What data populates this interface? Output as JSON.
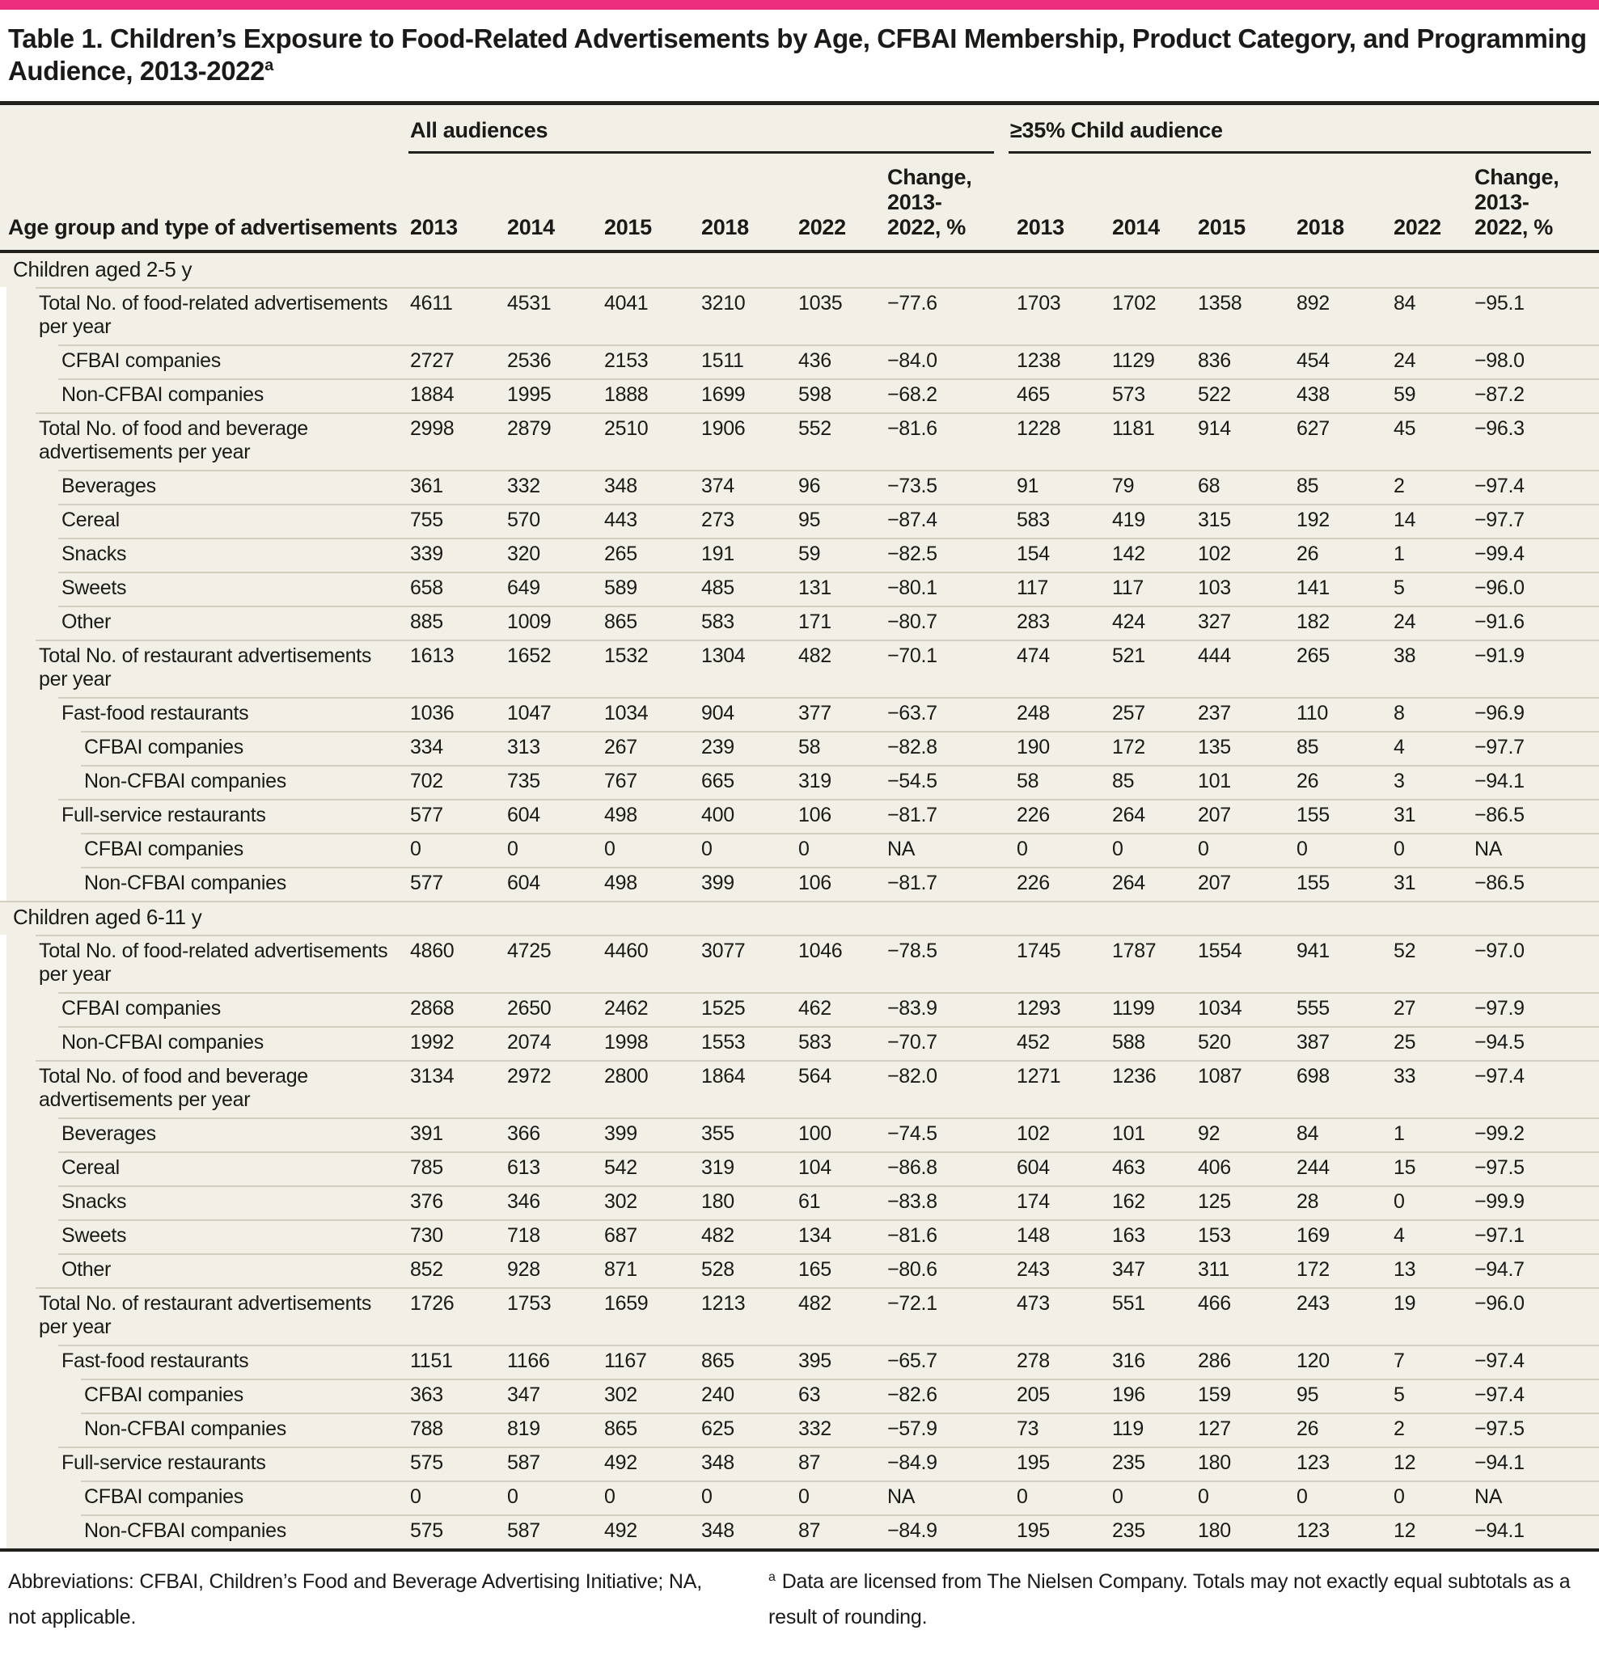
{
  "accent_color": "#ED2E7C",
  "title": "Table 1. Children’s Exposure to Food-Related Advertisements by Age, CFBAI Membership, Product Category, and Programming Audience, 2013-2022",
  "title_superscript": "a",
  "header": {
    "row_label": "Age group and type of advertisements",
    "groups": [
      {
        "label": "All audiences",
        "years": [
          "2013",
          "2014",
          "2015",
          "2018",
          "2022"
        ],
        "change_label": "Change,\n2013-\n2022, %"
      },
      {
        "label": "≥35% Child audience",
        "years": [
          "2013",
          "2014",
          "2015",
          "2018",
          "2022"
        ],
        "change_label": "Change,\n2013-\n2022, %"
      }
    ]
  },
  "sections": [
    {
      "label": "Children aged 2-5 y",
      "rows": [
        {
          "label": "Total No. of food-related advertisements per year",
          "level": 1,
          "all": [
            "4611",
            "4531",
            "4041",
            "3210",
            "1035",
            "−77.6"
          ],
          "child": [
            "1703",
            "1702",
            "1358",
            "892",
            "84",
            "−95.1"
          ]
        },
        {
          "label": "CFBAI companies",
          "level": 2,
          "all": [
            "2727",
            "2536",
            "2153",
            "1511",
            "436",
            "−84.0"
          ],
          "child": [
            "1238",
            "1129",
            "836",
            "454",
            "24",
            "−98.0"
          ]
        },
        {
          "label": "Non-CFBAI companies",
          "level": 2,
          "all": [
            "1884",
            "1995",
            "1888",
            "1699",
            "598",
            "−68.2"
          ],
          "child": [
            "465",
            "573",
            "522",
            "438",
            "59",
            "−87.2"
          ]
        },
        {
          "label": "Total No. of food and beverage advertisements per year",
          "level": 1,
          "all": [
            "2998",
            "2879",
            "2510",
            "1906",
            "552",
            "−81.6"
          ],
          "child": [
            "1228",
            "1181",
            "914",
            "627",
            "45",
            "−96.3"
          ]
        },
        {
          "label": "Beverages",
          "level": 2,
          "all": [
            "361",
            "332",
            "348",
            "374",
            "96",
            "−73.5"
          ],
          "child": [
            "91",
            "79",
            "68",
            "85",
            "2",
            "−97.4"
          ]
        },
        {
          "label": "Cereal",
          "level": 2,
          "all": [
            "755",
            "570",
            "443",
            "273",
            "95",
            "−87.4"
          ],
          "child": [
            "583",
            "419",
            "315",
            "192",
            "14",
            "−97.7"
          ]
        },
        {
          "label": "Snacks",
          "level": 2,
          "all": [
            "339",
            "320",
            "265",
            "191",
            "59",
            "−82.5"
          ],
          "child": [
            "154",
            "142",
            "102",
            "26",
            "1",
            "−99.4"
          ]
        },
        {
          "label": "Sweets",
          "level": 2,
          "all": [
            "658",
            "649",
            "589",
            "485",
            "131",
            "−80.1"
          ],
          "child": [
            "117",
            "117",
            "103",
            "141",
            "5",
            "−96.0"
          ]
        },
        {
          "label": "Other",
          "level": 2,
          "all": [
            "885",
            "1009",
            "865",
            "583",
            "171",
            "−80.7"
          ],
          "child": [
            "283",
            "424",
            "327",
            "182",
            "24",
            "−91.6"
          ]
        },
        {
          "label": "Total No. of restaurant advertisements per year",
          "level": 1,
          "all": [
            "1613",
            "1652",
            "1532",
            "1304",
            "482",
            "−70.1"
          ],
          "child": [
            "474",
            "521",
            "444",
            "265",
            "38",
            "−91.9"
          ]
        },
        {
          "label": "Fast-food restaurants",
          "level": 2,
          "all": [
            "1036",
            "1047",
            "1034",
            "904",
            "377",
            "−63.7"
          ],
          "child": [
            "248",
            "257",
            "237",
            "110",
            "8",
            "−96.9"
          ]
        },
        {
          "label": "CFBAI companies",
          "level": 3,
          "all": [
            "334",
            "313",
            "267",
            "239",
            "58",
            "−82.8"
          ],
          "child": [
            "190",
            "172",
            "135",
            "85",
            "4",
            "−97.7"
          ]
        },
        {
          "label": "Non-CFBAI companies",
          "level": 3,
          "all": [
            "702",
            "735",
            "767",
            "665",
            "319",
            "−54.5"
          ],
          "child": [
            "58",
            "85",
            "101",
            "26",
            "3",
            "−94.1"
          ]
        },
        {
          "label": "Full-service restaurants",
          "level": 2,
          "all": [
            "577",
            "604",
            "498",
            "400",
            "106",
            "−81.7"
          ],
          "child": [
            "226",
            "264",
            "207",
            "155",
            "31",
            "−86.5"
          ]
        },
        {
          "label": "CFBAI companies",
          "level": 3,
          "all": [
            "0",
            "0",
            "0",
            "0",
            "0",
            "NA"
          ],
          "child": [
            "0",
            "0",
            "0",
            "0",
            "0",
            "NA"
          ]
        },
        {
          "label": "Non-CFBAI companies",
          "level": 3,
          "all": [
            "577",
            "604",
            "498",
            "399",
            "106",
            "−81.7"
          ],
          "child": [
            "226",
            "264",
            "207",
            "155",
            "31",
            "−86.5"
          ]
        }
      ]
    },
    {
      "label": "Children aged 6-11 y",
      "rows": [
        {
          "label": "Total No. of food-related advertisements per year",
          "level": 1,
          "all": [
            "4860",
            "4725",
            "4460",
            "3077",
            "1046",
            "−78.5"
          ],
          "child": [
            "1745",
            "1787",
            "1554",
            "941",
            "52",
            "−97.0"
          ]
        },
        {
          "label": "CFBAI companies",
          "level": 2,
          "all": [
            "2868",
            "2650",
            "2462",
            "1525",
            "462",
            "−83.9"
          ],
          "child": [
            "1293",
            "1199",
            "1034",
            "555",
            "27",
            "−97.9"
          ]
        },
        {
          "label": "Non-CFBAI companies",
          "level": 2,
          "all": [
            "1992",
            "2074",
            "1998",
            "1553",
            "583",
            "−70.7"
          ],
          "child": [
            "452",
            "588",
            "520",
            "387",
            "25",
            "−94.5"
          ]
        },
        {
          "label": "Total No. of food and beverage advertisements per year",
          "level": 1,
          "all": [
            "3134",
            "2972",
            "2800",
            "1864",
            "564",
            "−82.0"
          ],
          "child": [
            "1271",
            "1236",
            "1087",
            "698",
            "33",
            "−97.4"
          ]
        },
        {
          "label": "Beverages",
          "level": 2,
          "all": [
            "391",
            "366",
            "399",
            "355",
            "100",
            "−74.5"
          ],
          "child": [
            "102",
            "101",
            "92",
            "84",
            "1",
            "−99.2"
          ]
        },
        {
          "label": "Cereal",
          "level": 2,
          "all": [
            "785",
            "613",
            "542",
            "319",
            "104",
            "−86.8"
          ],
          "child": [
            "604",
            "463",
            "406",
            "244",
            "15",
            "−97.5"
          ]
        },
        {
          "label": "Snacks",
          "level": 2,
          "all": [
            "376",
            "346",
            "302",
            "180",
            "61",
            "−83.8"
          ],
          "child": [
            "174",
            "162",
            "125",
            "28",
            "0",
            "−99.9"
          ]
        },
        {
          "label": "Sweets",
          "level": 2,
          "all": [
            "730",
            "718",
            "687",
            "482",
            "134",
            "−81.6"
          ],
          "child": [
            "148",
            "163",
            "153",
            "169",
            "4",
            "−97.1"
          ]
        },
        {
          "label": "Other",
          "level": 2,
          "all": [
            "852",
            "928",
            "871",
            "528",
            "165",
            "−80.6"
          ],
          "child": [
            "243",
            "347",
            "311",
            "172",
            "13",
            "−94.7"
          ]
        },
        {
          "label": "Total No. of restaurant advertisements per year",
          "level": 1,
          "all": [
            "1726",
            "1753",
            "1659",
            "1213",
            "482",
            "−72.1"
          ],
          "child": [
            "473",
            "551",
            "466",
            "243",
            "19",
            "−96.0"
          ]
        },
        {
          "label": "Fast-food restaurants",
          "level": 2,
          "all": [
            "1151",
            "1166",
            "1167",
            "865",
            "395",
            "−65.7"
          ],
          "child": [
            "278",
            "316",
            "286",
            "120",
            "7",
            "−97.4"
          ]
        },
        {
          "label": "CFBAI companies",
          "level": 3,
          "all": [
            "363",
            "347",
            "302",
            "240",
            "63",
            "−82.6"
          ],
          "child": [
            "205",
            "196",
            "159",
            "95",
            "5",
            "−97.4"
          ]
        },
        {
          "label": "Non-CFBAI companies",
          "level": 3,
          "all": [
            "788",
            "819",
            "865",
            "625",
            "332",
            "−57.9"
          ],
          "child": [
            "73",
            "119",
            "127",
            "26",
            "2",
            "−97.5"
          ]
        },
        {
          "label": "Full-service restaurants",
          "level": 2,
          "all": [
            "575",
            "587",
            "492",
            "348",
            "87",
            "−84.9"
          ],
          "child": [
            "195",
            "235",
            "180",
            "123",
            "12",
            "−94.1"
          ]
        },
        {
          "label": "CFBAI companies",
          "level": 3,
          "all": [
            "0",
            "0",
            "0",
            "0",
            "0",
            "NA"
          ],
          "child": [
            "0",
            "0",
            "0",
            "0",
            "0",
            "NA"
          ]
        },
        {
          "label": "Non-CFBAI companies",
          "level": 3,
          "all": [
            "575",
            "587",
            "492",
            "348",
            "87",
            "−84.9"
          ],
          "child": [
            "195",
            "235",
            "180",
            "123",
            "12",
            "−94.1"
          ]
        }
      ]
    }
  ],
  "footer": {
    "abbreviations": "Abbreviations: CFBAI, Children’s Food and Beverage Advertising Initiative; NA, not applicable.",
    "footnote_marker": "a",
    "footnote": "Data are licensed from The Nielsen Company. Totals may not exactly equal subtotals as a result of rounding."
  }
}
